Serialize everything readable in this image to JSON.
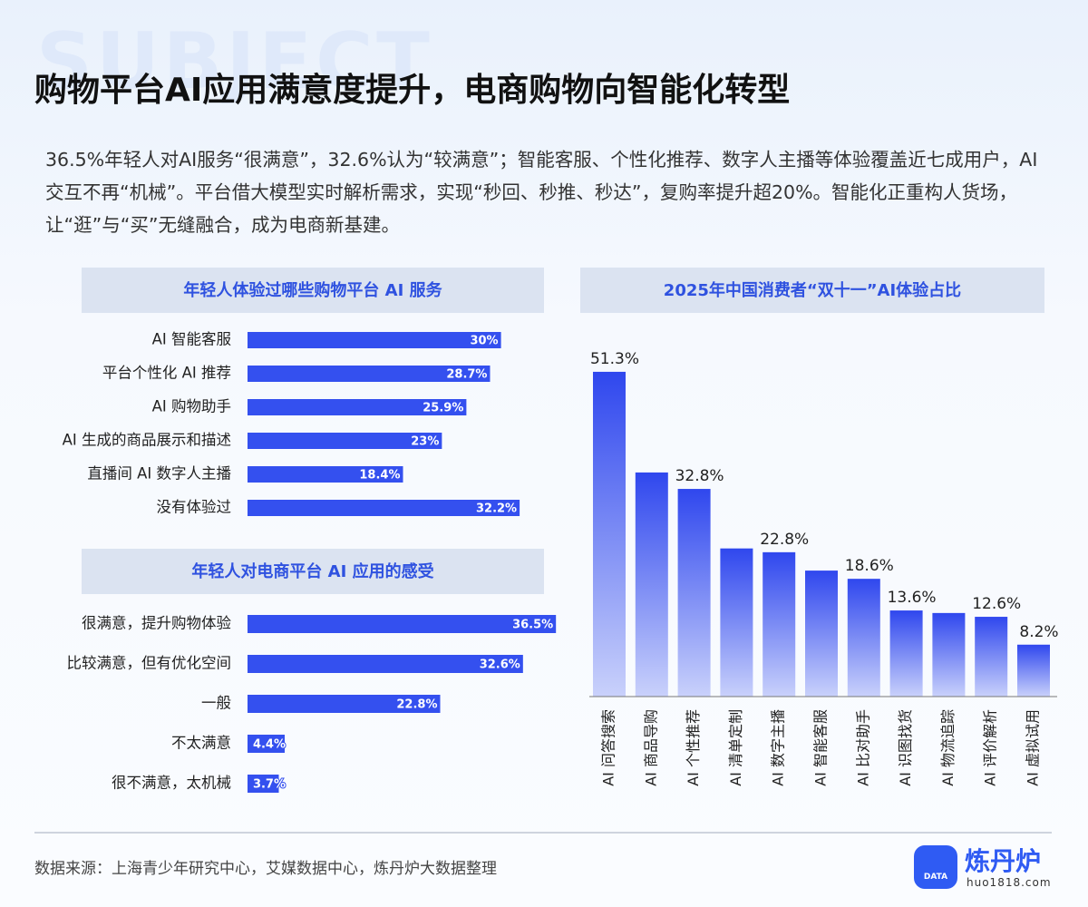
{
  "watermark": "SUBJECT",
  "title": "购物平台AI应用满意度提升，电商购物向智能化转型",
  "description": "36.5%年轻人对AI服务“很满意”，32.6%认为“较满意”；智能客服、个性化推荐、数字人主播等体验覆盖近七成用户，AI交互不再“机械”。平台借大模型实时解析需求，实现“秒回、秒推、秒达”，复购率提升超20%。智能化正重构人货场，让“逛”与“买”无缝融合，成为电商新基建。",
  "source": "数据来源：上海青少年研究中心，艾媒数据中心，炼丹炉大数据整理",
  "logo": {
    "name": "炼丹炉",
    "url": "huo1818.com",
    "badge": "DATA"
  },
  "chart_data": [
    {
      "type": "hbar",
      "title": "年轻人体验过哪些购物平台 AI 服务",
      "categories": [
        "AI 智能客服",
        "平台个性化 AI 推荐",
        "AI 购物助手",
        "AI 生成的商品展示和描述",
        "直播间 AI 数字人主播",
        "没有体验过"
      ],
      "values": [
        30,
        28.7,
        25.9,
        23,
        18.4,
        32.2
      ],
      "value_labels": [
        "30%",
        "28.7%",
        "25.9%",
        "23%",
        "18.4%",
        "32.2%"
      ],
      "color": "#3450ef"
    },
    {
      "type": "hbar",
      "title": "年轻人对电商平台 AI 应用的感受",
      "categories": [
        "很满意，提升购物体验",
        "比较满意，但有优化空间",
        "一般",
        "不太满意",
        "很不满意，太机械"
      ],
      "values": [
        36.5,
        32.6,
        22.8,
        4.4,
        3.7
      ],
      "value_labels": [
        "36.5%",
        "32.6%",
        "22.8%",
        "4.4%",
        "3.7%"
      ],
      "color": "#3450ef"
    },
    {
      "type": "bar",
      "title": "2025年中国消费者“双十一”AI体验占比",
      "categories": [
        "AI 问答搜索",
        "AI 商品导购",
        "AI 个性推荐",
        "AI 清单定制",
        "AI 数字主播",
        "AI 智能客服",
        "AI 比对助手",
        "AI 识图找货",
        "AI 物流追踪",
        "AI 评价解析",
        "AI 虚拟试用"
      ],
      "values": [
        51.3,
        35.4,
        32.8,
        23.4,
        22.8,
        19.9,
        18.6,
        13.6,
        13.2,
        12.6,
        8.2
      ],
      "value_labels": [
        "51.3%",
        null,
        "32.8%",
        null,
        "22.8%",
        null,
        "18.6%",
        "13.6%",
        null,
        "12.6%",
        "8.2%"
      ],
      "color": "#2f47ee"
    }
  ]
}
